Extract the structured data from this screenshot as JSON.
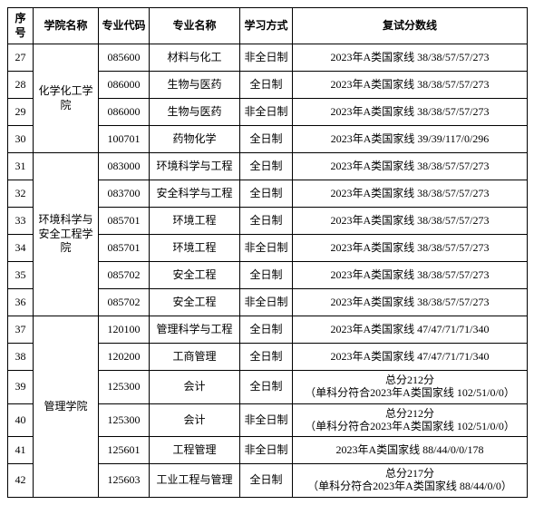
{
  "headers": {
    "idx": "序号",
    "dept": "学院名称",
    "code": "专业代码",
    "major": "专业名称",
    "mode": "学习方式",
    "score": "复试分数线"
  },
  "depts": {
    "chem": "化学化工学院",
    "env": "环境科学与安全工程学院",
    "mgmt": "管理学院"
  },
  "rows": [
    {
      "idx": "27",
      "code": "085600",
      "major": "材料与化工",
      "mode": "非全日制",
      "score": "2023年A类国家线 38/38/57/57/273"
    },
    {
      "idx": "28",
      "code": "086000",
      "major": "生物与医药",
      "mode": "全日制",
      "score": "2023年A类国家线 38/38/57/57/273"
    },
    {
      "idx": "29",
      "code": "086000",
      "major": "生物与医药",
      "mode": "非全日制",
      "score": "2023年A类国家线 38/38/57/57/273"
    },
    {
      "idx": "30",
      "code": "100701",
      "major": "药物化学",
      "mode": "全日制",
      "score": "2023年A类国家线 39/39/117/0/296"
    },
    {
      "idx": "31",
      "code": "083000",
      "major": "环境科学与工程",
      "mode": "全日制",
      "score": "2023年A类国家线 38/38/57/57/273"
    },
    {
      "idx": "32",
      "code": "083700",
      "major": "安全科学与工程",
      "mode": "全日制",
      "score": "2023年A类国家线 38/38/57/57/273"
    },
    {
      "idx": "33",
      "code": "085701",
      "major": "环境工程",
      "mode": "全日制",
      "score": "2023年A类国家线 38/38/57/57/273"
    },
    {
      "idx": "34",
      "code": "085701",
      "major": "环境工程",
      "mode": "非全日制",
      "score": "2023年A类国家线 38/38/57/57/273"
    },
    {
      "idx": "35",
      "code": "085702",
      "major": "安全工程",
      "mode": "全日制",
      "score": "2023年A类国家线 38/38/57/57/273"
    },
    {
      "idx": "36",
      "code": "085702",
      "major": "安全工程",
      "mode": "非全日制",
      "score": "2023年A类国家线 38/38/57/57/273"
    },
    {
      "idx": "37",
      "code": "120100",
      "major": "管理科学与工程",
      "mode": "全日制",
      "score": "2023年A类国家线 47/47/71/71/340"
    },
    {
      "idx": "38",
      "code": "120200",
      "major": "工商管理",
      "mode": "全日制",
      "score": "2023年A类国家线 47/47/71/71/340"
    },
    {
      "idx": "39",
      "code": "125300",
      "major": "会计",
      "mode": "全日制",
      "score1": "总分212分",
      "score2": "（单科分符合2023年A类国家线 102/51/0/0）"
    },
    {
      "idx": "40",
      "code": "125300",
      "major": "会计",
      "mode": "非全日制",
      "score1": "总分212分",
      "score2": "（单科分符合2023年A类国家线 102/51/0/0）"
    },
    {
      "idx": "41",
      "code": "125601",
      "major": "工程管理",
      "mode": "非全日制",
      "score": "2023年A类国家线 88/44/0/0/178"
    },
    {
      "idx": "42",
      "code": "125603",
      "major": "工业工程与管理",
      "mode": "全日制",
      "score1": "总分217分",
      "score2": "（单科分符合2023年A类国家线 88/44/0/0）"
    }
  ]
}
